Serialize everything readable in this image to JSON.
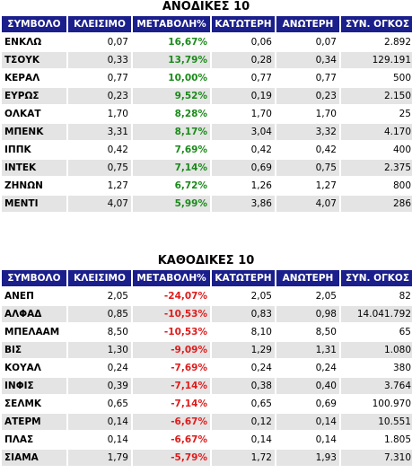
{
  "gainers": {
    "title": "ΑΝΟΔΙΚΕΣ 10",
    "headers": [
      "ΣΥΜΒΟΛΟ",
      "ΚΛΕΙΣΙΜΟ",
      "ΜΕΤΑΒΟΛΗ%",
      "ΚΑΤΩΤΕΡΗ",
      "ΑΝΩΤΕΡΗ",
      "ΣΥΝ. ΟΓΚΟΣ"
    ],
    "rows": [
      {
        "symbol": "ΕΝΚΛΩ",
        "close": "0,07",
        "change": "16,67%",
        "low": "0,06",
        "high": "0,07",
        "volume": "2.892"
      },
      {
        "symbol": "ΤΣΟΥΚ",
        "close": "0,33",
        "change": "13,79%",
        "low": "0,28",
        "high": "0,34",
        "volume": "129.191"
      },
      {
        "symbol": "ΚΕΡΑΛ",
        "close": "0,77",
        "change": "10,00%",
        "low": "0,77",
        "high": "0,77",
        "volume": "500"
      },
      {
        "symbol": "ΕΥΡΩΣ",
        "close": "0,23",
        "change": "9,52%",
        "low": "0,19",
        "high": "0,23",
        "volume": "2.150"
      },
      {
        "symbol": "ΟΛΚΑΤ",
        "close": "1,70",
        "change": "8,28%",
        "low": "1,70",
        "high": "1,70",
        "volume": "25"
      },
      {
        "symbol": "ΜΠΕΝΚ",
        "close": "3,31",
        "change": "8,17%",
        "low": "3,04",
        "high": "3,32",
        "volume": "4.170"
      },
      {
        "symbol": "ΙΠΠΚ",
        "close": "0,42",
        "change": "7,69%",
        "low": "0,42",
        "high": "0,42",
        "volume": "400"
      },
      {
        "symbol": "ΙΝΤΕΚ",
        "close": "0,75",
        "change": "7,14%",
        "low": "0,69",
        "high": "0,75",
        "volume": "2.375"
      },
      {
        "symbol": "ΖΗΝΩΝ",
        "close": "1,27",
        "change": "6,72%",
        "low": "1,26",
        "high": "1,27",
        "volume": "800"
      },
      {
        "symbol": "ΜΕΝΤΙ",
        "close": "4,07",
        "change": "5,99%",
        "low": "3,86",
        "high": "4,07",
        "volume": "286"
      }
    ]
  },
  "losers": {
    "title": "ΚΑΘΟΔΙΚΕΣ 10",
    "headers": [
      "ΣΥΜΒΟΛΟ",
      "ΚΛΕΙΣΙΜΟ",
      "ΜΕΤΑΒΟΛΗ%",
      "ΚΑΤΩΤΕΡΗ",
      "ΑΝΩΤΕΡΗ",
      "ΣΥΝ. ΟΓΚΟΣ"
    ],
    "rows": [
      {
        "symbol": "ΑΝΕΠ",
        "close": "2,05",
        "change": "-24,07%",
        "low": "2,05",
        "high": "2,05",
        "volume": "82"
      },
      {
        "symbol": "ΑΛΦΑΔ",
        "close": "0,85",
        "change": "-10,53%",
        "low": "0,83",
        "high": "0,98",
        "volume": "14.041.792"
      },
      {
        "symbol": "ΜΠΕΛΑΑΜ",
        "close": "8,50",
        "change": "-10,53%",
        "low": "8,10",
        "high": "8,50",
        "volume": "65"
      },
      {
        "symbol": "ΒΙΣ",
        "close": "1,30",
        "change": "-9,09%",
        "low": "1,29",
        "high": "1,31",
        "volume": "1.080"
      },
      {
        "symbol": "ΚΟΥΑΛ",
        "close": "0,24",
        "change": "-7,69%",
        "low": "0,24",
        "high": "0,24",
        "volume": "380"
      },
      {
        "symbol": "ΙΝΦΙΣ",
        "close": "0,39",
        "change": "-7,14%",
        "low": "0,38",
        "high": "0,40",
        "volume": "3.764"
      },
      {
        "symbol": "ΣΕΛΜΚ",
        "close": "0,65",
        "change": "-7,14%",
        "low": "0,65",
        "high": "0,69",
        "volume": "100.970"
      },
      {
        "symbol": "ΑΤΕΡΜ",
        "close": "0,14",
        "change": "-6,67%",
        "low": "0,12",
        "high": "0,14",
        "volume": "10.551"
      },
      {
        "symbol": "ΠΛΑΣ",
        "close": "0,14",
        "change": "-6,67%",
        "low": "0,14",
        "high": "0,14",
        "volume": "1.805"
      },
      {
        "symbol": "ΣΙΑΜΑ",
        "close": "1,79",
        "change": "-5,79%",
        "low": "1,72",
        "high": "1,93",
        "volume": "7.310"
      }
    ]
  },
  "colors": {
    "header_bg": "#1b1f8c",
    "up": "#1a8a1a",
    "down": "#e01b1b",
    "row_alt": "#e4e4e4"
  }
}
